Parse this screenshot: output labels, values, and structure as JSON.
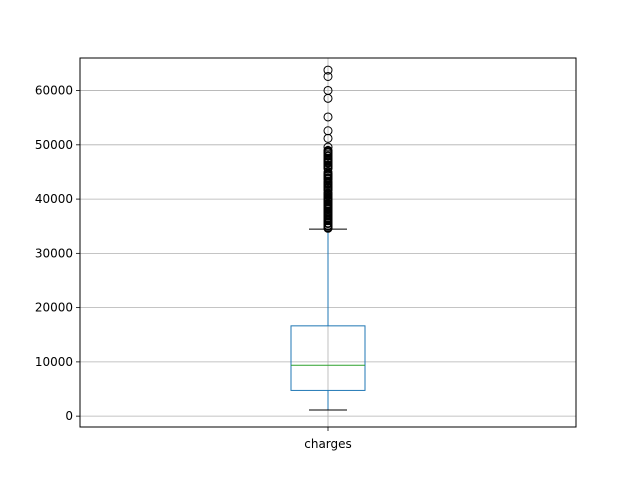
{
  "chart_data": {
    "type": "box",
    "title": "",
    "xlabel": "",
    "ylabel": "",
    "categories": [
      "charges"
    ],
    "ylim": [
      -2000,
      66000
    ],
    "yticks": [
      0,
      10000,
      20000,
      30000,
      40000,
      50000,
      60000
    ],
    "ytick_labels": [
      "0",
      "10000",
      "20000",
      "30000",
      "40000",
      "50000",
      "60000"
    ],
    "grid": true,
    "box": {
      "name": "charges",
      "whisker_low": 1122,
      "q1": 4740,
      "median": 9382,
      "q3": 16640,
      "whisker_high": 34472,
      "outliers": [
        63770,
        62593,
        60021,
        58571,
        55135,
        52591,
        51195,
        49578,
        48970,
        48885,
        48824,
        48675,
        48549,
        48517,
        48173,
        47928,
        47896,
        47496,
        47462,
        47403,
        47305,
        47291,
        47270,
        47055,
        46889,
        46719,
        46661,
        46599,
        46255,
        46200,
        46151,
        46130,
        46113,
        45863,
        45710,
        45702,
        45008,
        44641,
        44585,
        44501,
        44423,
        44400,
        44260,
        44202,
        43943,
        43921,
        43896,
        43813,
        43754,
        43578,
        43254,
        42983,
        42969,
        42856,
        42760,
        42560,
        42303,
        42112,
        42124,
        41999,
        41949,
        41919,
        41676,
        41661,
        41097,
        41034,
        40974,
        40941,
        40932,
        40904,
        40720,
        40419,
        40273,
        40182,
        40103,
        40003,
        39983,
        39871,
        39836,
        39725,
        39611,
        39597,
        39556,
        39241,
        39125,
        39047,
        38998,
        38792,
        38746,
        38711,
        38511,
        38415,
        38345,
        38282,
        38245,
        38126,
        37829,
        37742,
        37701,
        37607,
        37484,
        37465,
        37270,
        37165,
        37133,
        37079,
        36950,
        36910,
        36837,
        36580,
        36398,
        36307,
        36219,
        36197,
        36149,
        36124,
        36086,
        36021,
        35595,
        35585,
        35491,
        35160,
        35147,
        35069,
        34839,
        34806,
        34780,
        34672,
        34617
      ]
    },
    "colors": {
      "box": "#1f77b4",
      "whisker": "#1f77b4",
      "cap": "#000000",
      "median": "#2ca02c",
      "flier": "#000000",
      "grid": "#b0b0b0"
    }
  }
}
